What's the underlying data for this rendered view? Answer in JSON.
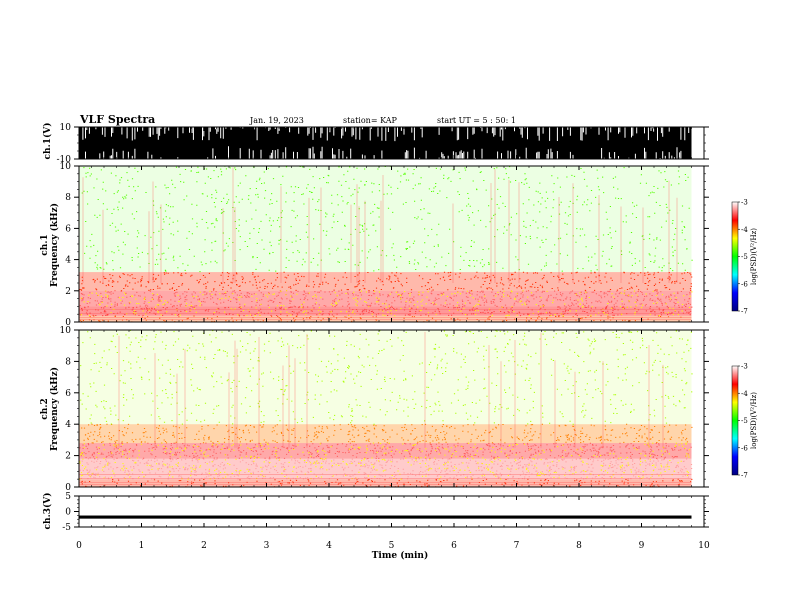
{
  "header": {
    "title": "VLF Spectra",
    "date": "Jan. 19, 2023",
    "station": "station= KAP",
    "start": "start UT =  5 : 50: 1"
  },
  "colorbar": {
    "label": "log(PSD)(V²/Hz)",
    "ticks": [
      "-3",
      "-4",
      "-5",
      "-6",
      "-7"
    ],
    "range": [
      -7,
      -3
    ],
    "colors": [
      "#000080",
      "#0000ff",
      "#00ffff",
      "#00ff00",
      "#ffff00",
      "#ff0000",
      "#ffffff"
    ]
  },
  "chart_data": [
    {
      "type": "line",
      "name": "ch1-waveform",
      "ylabel": "ch.1(V)",
      "ylim": [
        -10,
        10
      ],
      "yticks": [
        "10",
        "-10"
      ],
      "xlim": [
        0,
        10
      ],
      "description_level": "saturated, clipped between -10 and 10"
    },
    {
      "type": "heatmap",
      "name": "ch1-spectrogram",
      "ylabel_line1": "ch.1",
      "ylabel_line2": "Frequency (kHz)",
      "ylim": [
        0,
        10
      ],
      "yticks": [
        "0",
        "2",
        "4",
        "6",
        "8",
        "10"
      ],
      "xlim": [
        0,
        10
      ],
      "bands": [
        {
          "f0": 0.0,
          "f1": 0.4,
          "level": -4.0
        },
        {
          "f0": 0.4,
          "f1": 1.0,
          "level": -3.6
        },
        {
          "f0": 1.0,
          "f1": 2.0,
          "level": -3.5
        },
        {
          "f0": 2.0,
          "f1": 3.2,
          "level": -3.9
        },
        {
          "f0": 3.2,
          "f1": 10.0,
          "level": -4.8
        }
      ]
    },
    {
      "type": "heatmap",
      "name": "ch2-spectrogram",
      "ylabel_line1": "ch.2",
      "ylabel_line2": "Frequency (kHz)",
      "ylim": [
        0,
        10
      ],
      "yticks": [
        "0",
        "2",
        "4",
        "6",
        "8",
        "10"
      ],
      "xlim": [
        0,
        10
      ],
      "bands": [
        {
          "f0": 0.0,
          "f1": 0.5,
          "level": -3.9
        },
        {
          "f0": 0.5,
          "f1": 1.8,
          "level": -3.3
        },
        {
          "f0": 1.8,
          "f1": 2.8,
          "level": -3.5
        },
        {
          "f0": 2.8,
          "f1": 4.0,
          "level": -4.1
        },
        {
          "f0": 4.0,
          "f1": 10.0,
          "level": -4.6
        }
      ]
    },
    {
      "type": "line",
      "name": "ch3-waveform",
      "ylabel": "ch.3(V)",
      "ylim": [
        -5,
        5
      ],
      "yticks": [
        "5",
        "0",
        "-5"
      ],
      "xlim": [
        0,
        10
      ],
      "description_level": "constant near -2 V"
    }
  ],
  "xaxis": {
    "label": "Time (min)",
    "ticks": [
      "0",
      "1",
      "2",
      "3",
      "4",
      "5",
      "6",
      "7",
      "8",
      "9",
      "10"
    ],
    "data_end": 9.8
  }
}
